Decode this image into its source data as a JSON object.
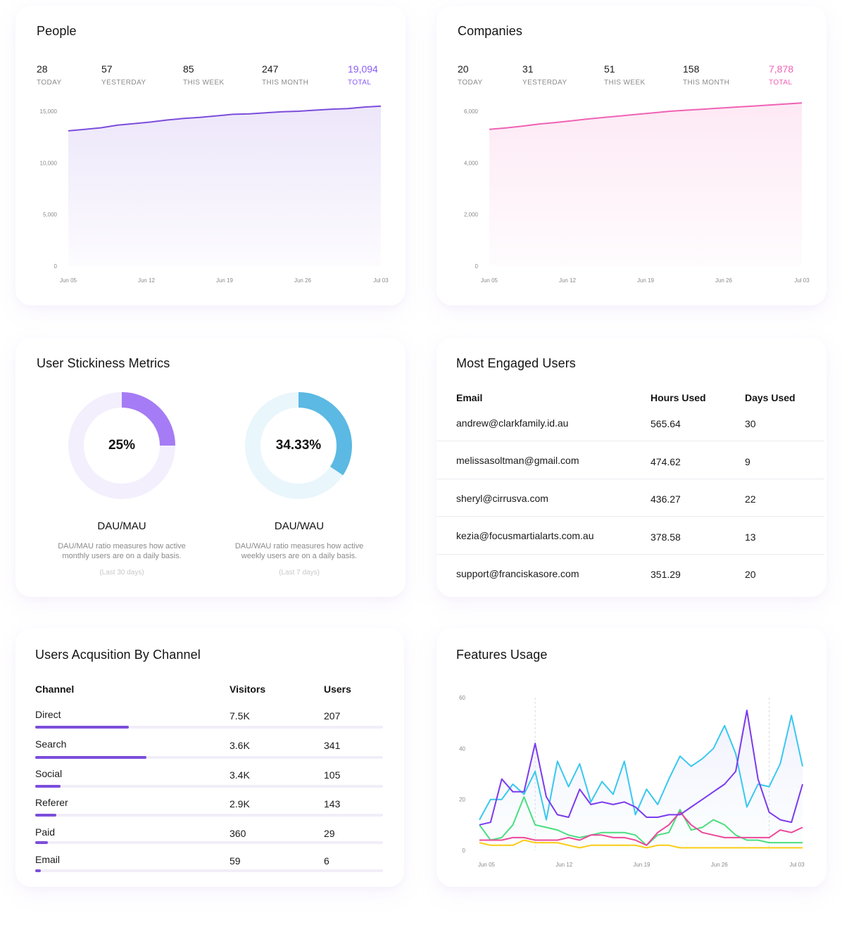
{
  "colors": {
    "people_accent": "#7c4ddb",
    "companies_accent": "#f062b5",
    "dau_mau": "#a57cf5",
    "dau_wau": "#5bb9e3",
    "bar_fill": "#7c4ddb"
  },
  "people": {
    "title": "People",
    "stats": [
      {
        "value": "28",
        "label": "TODAY"
      },
      {
        "value": "57",
        "label": "YESTERDAY"
      },
      {
        "value": "85",
        "label": "THIS WEEK"
      },
      {
        "value": "247",
        "label": "THIS MONTH"
      },
      {
        "value": "19,094",
        "label": "TOTAL"
      }
    ]
  },
  "companies": {
    "title": "Companies",
    "stats": [
      {
        "value": "20",
        "label": "TODAY"
      },
      {
        "value": "31",
        "label": "YESTERDAY"
      },
      {
        "value": "51",
        "label": "THIS WEEK"
      },
      {
        "value": "158",
        "label": "THIS MONTH"
      },
      {
        "value": "7,878",
        "label": "TOTAL"
      }
    ]
  },
  "stickiness": {
    "title": "User Stickiness Metrics",
    "metrics": [
      {
        "pct_label": "25%",
        "fraction": 0.25,
        "name": "DAU/MAU",
        "desc_line1": "DAU/MAU ratio measures how active",
        "desc_line2": "monthly users are on a daily basis.",
        "range": "(Last 30 days)"
      },
      {
        "pct_label": "34.33%",
        "fraction": 0.3433,
        "name": "DAU/WAU",
        "desc_line1": "DAU/WAU ratio measures how active",
        "desc_line2": "weekly users are on a daily basis.",
        "range": "(Last 7 days)"
      }
    ]
  },
  "engaged": {
    "title": "Most Engaged Users",
    "headers": {
      "email": "Email",
      "hours": "Hours Used",
      "days": "Days Used"
    },
    "rows": [
      {
        "email": "andrew@clarkfamily.id.au",
        "hours": "565.64",
        "days": "30"
      },
      {
        "email": "melissasoltman@gmail.com",
        "hours": "474.62",
        "days": "9"
      },
      {
        "email": "sheryl@cirrusva.com",
        "hours": "436.27",
        "days": "22"
      },
      {
        "email": "kezia@focusmartialarts.com.au",
        "hours": "378.58",
        "days": "13"
      },
      {
        "email": "support@franciskasore.com",
        "hours": "351.29",
        "days": "20"
      }
    ]
  },
  "acquisition": {
    "title": "Users Acqusition By Channel",
    "headers": {
      "channel": "Channel",
      "visitors": "Visitors",
      "users": "Users"
    },
    "rows": [
      {
        "channel": "Direct",
        "visitors": "7.5K",
        "users": "207",
        "share": 0.27
      },
      {
        "channel": "Search",
        "visitors": "3.6K",
        "users": "341",
        "share": 0.32
      },
      {
        "channel": "Social",
        "visitors": "3.4K",
        "users": "105",
        "share": 0.072
      },
      {
        "channel": "Referer",
        "visitors": "2.9K",
        "users": "143",
        "share": 0.06
      },
      {
        "channel": "Paid",
        "visitors": "360",
        "users": "29",
        "share": 0.036
      },
      {
        "channel": "Email",
        "visitors": "59",
        "users": "6",
        "share": 0.016
      }
    ]
  },
  "features": {
    "title": "Features Usage"
  },
  "chart_data": [
    {
      "id": "people",
      "type": "area",
      "title": "People",
      "x_tick_labels": [
        "Jun 05",
        "Jun 12",
        "Jun 19",
        "Jun 26",
        "Jul 03"
      ],
      "y_tick_labels": [
        "0",
        "5,000",
        "10,000",
        "15,000"
      ],
      "ylim": [
        0,
        15000
      ],
      "x": [
        0,
        1,
        2,
        3,
        4,
        5,
        6,
        7,
        8,
        9,
        10,
        11,
        12,
        13,
        14,
        15,
        16,
        17,
        18,
        19
      ],
      "values": [
        13100,
        13250,
        13400,
        13650,
        13800,
        13950,
        14150,
        14300,
        14400,
        14550,
        14700,
        14750,
        14850,
        14950,
        15000,
        15100,
        15200,
        15250,
        15400,
        15500
      ]
    },
    {
      "id": "companies",
      "type": "area",
      "title": "Companies",
      "x_tick_labels": [
        "Jun 05",
        "Jun 12",
        "Jun 19",
        "Jun 26",
        "Jul 03"
      ],
      "y_tick_labels": [
        "0",
        "2,000",
        "4,000",
        "6,000"
      ],
      "ylim": [
        0,
        6000
      ],
      "x": [
        0,
        1,
        2,
        3,
        4,
        5,
        6,
        7,
        8,
        9,
        10,
        11,
        12,
        13,
        14,
        15,
        16,
        17,
        18,
        19
      ],
      "values": [
        5300,
        5350,
        5420,
        5500,
        5560,
        5630,
        5700,
        5760,
        5820,
        5880,
        5940,
        6000,
        6040,
        6080,
        6120,
        6160,
        6200,
        6240,
        6280,
        6320
      ]
    },
    {
      "id": "features",
      "type": "line",
      "title": "Features Usage",
      "x_tick_labels": [
        "Jun 05",
        "Jun 12",
        "Jun 19",
        "Jun 26",
        "Jul 03"
      ],
      "y_tick_labels": [
        "0",
        "20",
        "40",
        "60"
      ],
      "ylim": [
        0,
        60
      ],
      "x": [
        0,
        1,
        2,
        3,
        4,
        5,
        6,
        7,
        8,
        9,
        10,
        11,
        12,
        13,
        14,
        15,
        16,
        17,
        18,
        19,
        20,
        21,
        22,
        23,
        24,
        25,
        26,
        27,
        28,
        29
      ],
      "series": [
        {
          "name": "Purple",
          "color": "#7c3aed",
          "values": [
            10,
            11,
            28,
            23,
            23,
            42,
            21,
            14,
            13,
            24,
            18,
            19,
            18,
            19,
            17,
            13,
            13,
            14,
            14,
            17,
            20,
            23,
            26,
            31,
            55,
            28,
            15,
            12,
            11,
            26
          ]
        },
        {
          "name": "Cyan",
          "color": "#38c8ef",
          "values": [
            12,
            20,
            20,
            26,
            22,
            31,
            12,
            35,
            25,
            34,
            19,
            27,
            22,
            35,
            14,
            24,
            18,
            28,
            37,
            33,
            36,
            40,
            49,
            38,
            17,
            26,
            25,
            34,
            53,
            33
          ]
        },
        {
          "name": "Green",
          "color": "#4ade80",
          "values": [
            10,
            4,
            5,
            10,
            21,
            10,
            9,
            8,
            6,
            5,
            6,
            7,
            7,
            7,
            6,
            2,
            6,
            7,
            16,
            8,
            9,
            12,
            10,
            6,
            4,
            4,
            3,
            3,
            3,
            3
          ]
        },
        {
          "name": "Pink",
          "color": "#ec4899",
          "values": [
            4,
            4,
            4,
            5,
            5,
            4,
            4,
            4,
            5,
            4,
            6,
            6,
            5,
            5,
            4,
            2,
            7,
            10,
            15,
            10,
            7,
            6,
            5,
            5,
            5,
            5,
            5,
            8,
            7,
            9
          ]
        },
        {
          "name": "Yellow",
          "color": "#facc15",
          "values": [
            3,
            2,
            2,
            2,
            4,
            3,
            3,
            3,
            2,
            1,
            2,
            2,
            2,
            2,
            2,
            1,
            2,
            2,
            1,
            1,
            1,
            1,
            1,
            1,
            1,
            1,
            1,
            1,
            1,
            1
          ]
        }
      ]
    }
  ]
}
